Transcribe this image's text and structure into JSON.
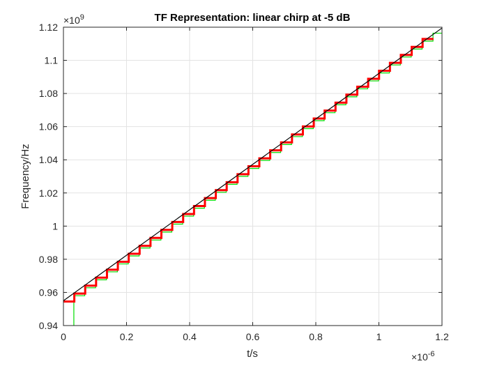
{
  "chart_data": {
    "type": "line",
    "title": "TF Representation: linear chirp at -5 dB",
    "xlabel": "t/s",
    "ylabel": "Frequency/Hz",
    "x_exponent_base": "×10",
    "x_exponent_power": "-6",
    "y_exponent_base": "×10",
    "y_exponent_power": "9",
    "x_scale": 1e-06,
    "y_scale": 1000000000.0,
    "xlim": [
      0,
      1.2
    ],
    "ylim": [
      0.94,
      1.12
    ],
    "x_ticks": [
      0,
      0.2,
      0.4,
      0.6,
      0.8,
      1.0,
      1.2
    ],
    "x_tick_labels": [
      "0",
      "0.2",
      "0.4",
      "0.6",
      "0.8",
      "1",
      "1.2"
    ],
    "y_ticks": [
      0.94,
      0.96,
      0.98,
      1.0,
      1.02,
      1.04,
      1.06,
      1.08,
      1.1,
      1.12
    ],
    "y_tick_labels": [
      "0.94",
      "0.96",
      "0.98",
      "1",
      "1.02",
      "1.04",
      "1.06",
      "1.08",
      "1.1",
      "1.12"
    ],
    "grid": true,
    "series": [
      {
        "color": "#000000",
        "style": "line",
        "x": [
          0,
          1.2
        ],
        "y": [
          0.955,
          1.1195
        ]
      },
      {
        "color": "#00dd00",
        "style": "step",
        "step_width": 0.0345,
        "steps": 34,
        "start_x": 0.033,
        "start_y": 0.94,
        "y0": 0.9595,
        "dy": 0.0048,
        "offset": -0.0015
      },
      {
        "color": "#ff0000",
        "style": "step",
        "step_width": 0.0345,
        "steps": 34,
        "start_x": 0,
        "start_y": 0.955,
        "y0": 0.9545,
        "dy": 0.0048,
        "offset": 0
      }
    ]
  }
}
